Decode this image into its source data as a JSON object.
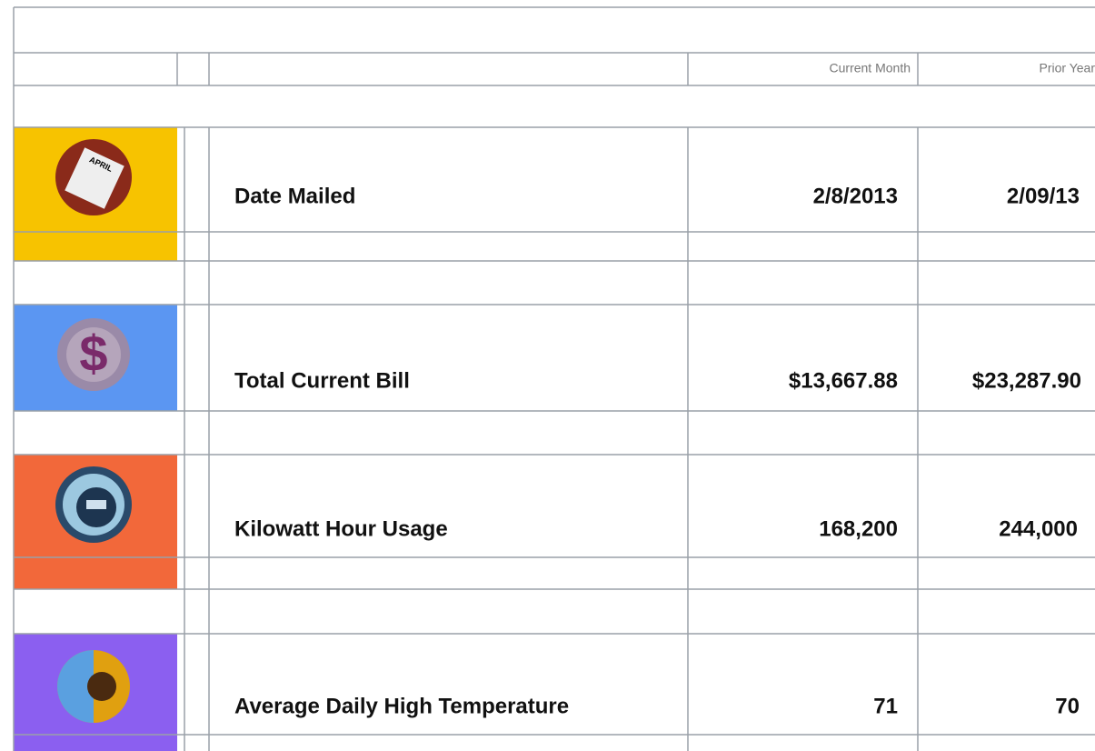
{
  "table": {
    "columns": [
      "Current Month",
      "Prior Year"
    ],
    "rows": [
      [
        "Date Mailed",
        "2/8/2013",
        "2/09/13"
      ],
      [
        "Total Current Bill",
        "$13,667.88",
        "$23,287.90"
      ],
      [
        "Kilowatt Hour Usage",
        "168,200",
        "244,000"
      ],
      [
        "Average Daily High Temperature",
        "71",
        "70"
      ]
    ]
  }
}
